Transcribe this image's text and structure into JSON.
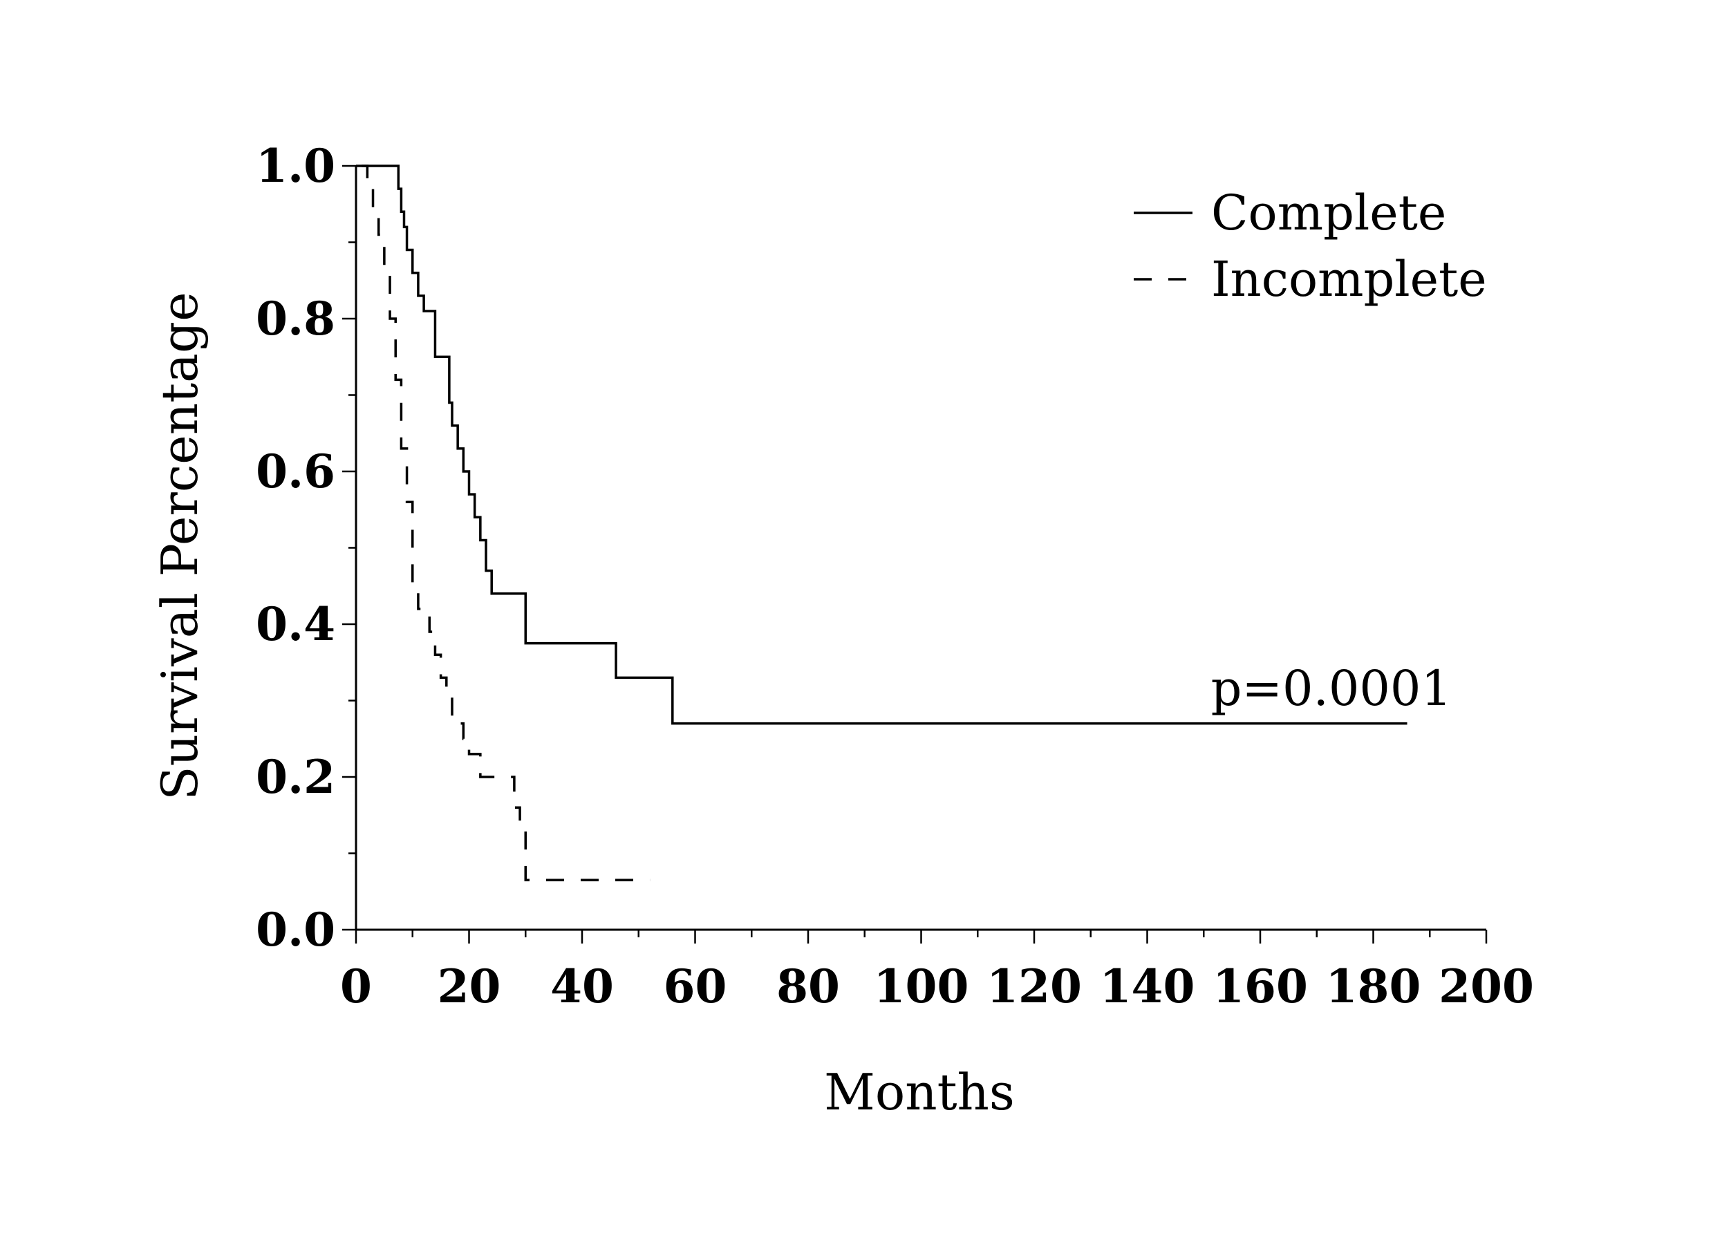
{
  "chart_data": {
    "type": "line",
    "xlabel": "Months",
    "ylabel": "Survival Percentage",
    "xlim": [
      0,
      200
    ],
    "ylim": [
      0,
      1
    ],
    "xticks": [
      "0",
      "20",
      "40",
      "60",
      "80",
      "100",
      "120",
      "140",
      "160",
      "180",
      "200"
    ],
    "yticks": [
      "0.0",
      "0.2",
      "0.4",
      "0.6",
      "0.8",
      "1.0"
    ],
    "legend_position": "top-right",
    "grid": false,
    "annotation": "p=0.0001",
    "series": [
      {
        "name": "Complete",
        "line_style": "solid",
        "x": [
          0,
          7,
          7.5,
          8,
          8.5,
          9,
          10,
          11,
          12,
          14,
          16,
          16.5,
          17,
          18,
          19,
          20,
          21,
          22,
          23,
          24,
          29,
          30,
          45,
          46,
          55,
          56,
          186
        ],
        "y": [
          1.0,
          1.0,
          0.97,
          0.94,
          0.92,
          0.89,
          0.86,
          0.83,
          0.81,
          0.75,
          0.75,
          0.69,
          0.66,
          0.63,
          0.6,
          0.57,
          0.54,
          0.51,
          0.47,
          0.44,
          0.44,
          0.375,
          0.375,
          0.33,
          0.33,
          0.27,
          0.27
        ]
      },
      {
        "name": "Incomplete",
        "line_style": "dashed",
        "x": [
          1,
          2,
          3,
          4,
          5,
          6,
          7,
          8,
          9,
          10,
          11,
          12,
          13,
          14,
          15,
          16,
          17,
          18,
          19,
          20,
          22,
          24,
          27,
          28,
          29,
          30,
          52
        ],
        "y": [
          1.0,
          0.97,
          0.94,
          0.91,
          0.87,
          0.8,
          0.72,
          0.63,
          0.56,
          0.45,
          0.42,
          0.42,
          0.39,
          0.36,
          0.33,
          0.31,
          0.28,
          0.27,
          0.25,
          0.23,
          0.2,
          0.2,
          0.2,
          0.16,
          0.13,
          0.065,
          0.065
        ]
      }
    ]
  }
}
